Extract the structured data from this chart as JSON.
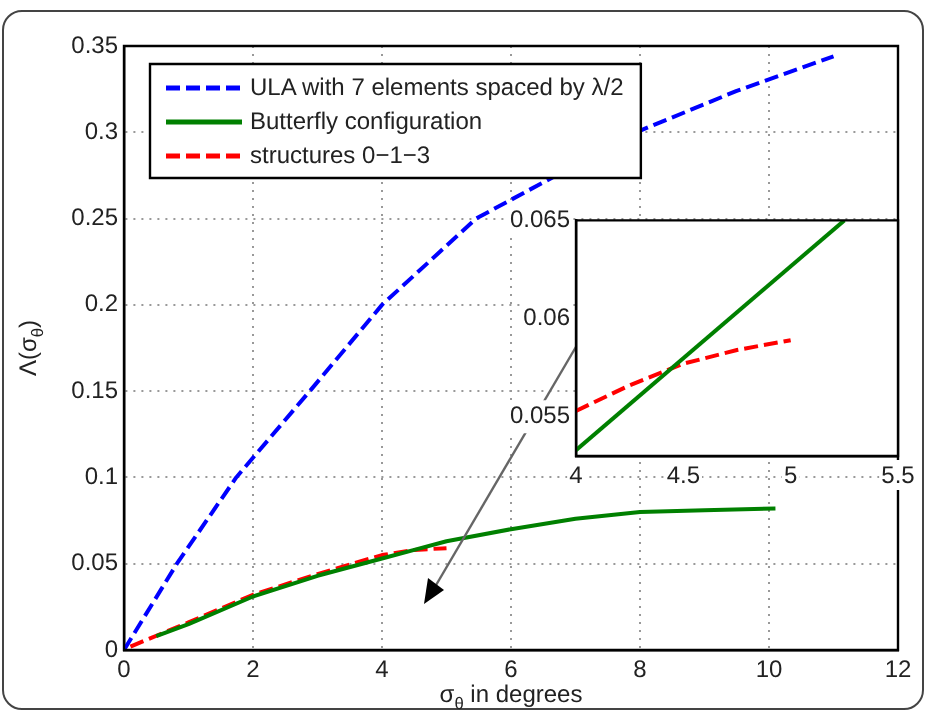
{
  "chart_data": [
    {
      "type": "line",
      "xlabel": "σ$_{θ}$ in degrees",
      "ylabel": "Λ(σ$_{θ}$)",
      "xlim": [
        0,
        12
      ],
      "ylim": [
        0,
        0.35
      ],
      "xticks": [
        0,
        2,
        4,
        6,
        8,
        10,
        12
      ],
      "yticks": [
        0,
        0.05,
        0.1,
        0.15,
        0.2,
        0.25,
        0.3,
        0.35
      ],
      "grid": true,
      "legend": "top left",
      "marker": "none",
      "series": [
        {
          "name": "ULA with 7 elements spaced by λ/2",
          "color": "#0000ff",
          "line_style": "dashed",
          "x": [
            0,
            0.82,
            1.74,
            2.88,
            4,
            5.46,
            7.94,
            9.5,
            11
          ],
          "values": [
            0,
            0.05,
            0.1,
            0.15,
            0.2,
            0.25,
            0.3,
            0.324,
            0.344
          ]
        },
        {
          "name": "Butterfly configuration",
          "color": "#008000",
          "line_style": "solid",
          "x": [
            0.5,
            1,
            2,
            3,
            4,
            4.5,
            5,
            6,
            7,
            8,
            9,
            10.1
          ],
          "values": [
            0.008,
            0.015,
            0.031,
            0.043,
            0.053,
            0.058,
            0.063,
            0.07,
            0.076,
            0.08,
            0.081,
            0.082
          ]
        },
        {
          "name": "structures 0−1−3",
          "color": "#ff0000",
          "line_style": "dashed",
          "x": [
            0.1,
            1,
            2,
            3,
            4,
            4.5,
            5
          ],
          "values": [
            0.002,
            0.016,
            0.032,
            0.044,
            0.055,
            0.058,
            0.059
          ]
        }
      ]
    },
    {
      "type": "line",
      "xlim": [
        4,
        5.5
      ],
      "ylim": [
        0.053,
        0.065
      ],
      "xticks": [
        4,
        4.5,
        5,
        5.5
      ],
      "yticks": [
        0.055,
        0.06,
        0.065
      ],
      "grid": false,
      "marker": "none",
      "series": [
        {
          "color": "#008000",
          "line_style": "solid",
          "x": [
            4,
            5.25
          ],
          "values": [
            0.0533,
            0.065
          ]
        },
        {
          "color": "#ff0000",
          "line_style": "dashed",
          "x": [
            4,
            4.25,
            4.5,
            4.75,
            5
          ],
          "values": [
            0.0553,
            0.0566,
            0.0577,
            0.0584,
            0.0589
          ]
        }
      ]
    }
  ]
}
